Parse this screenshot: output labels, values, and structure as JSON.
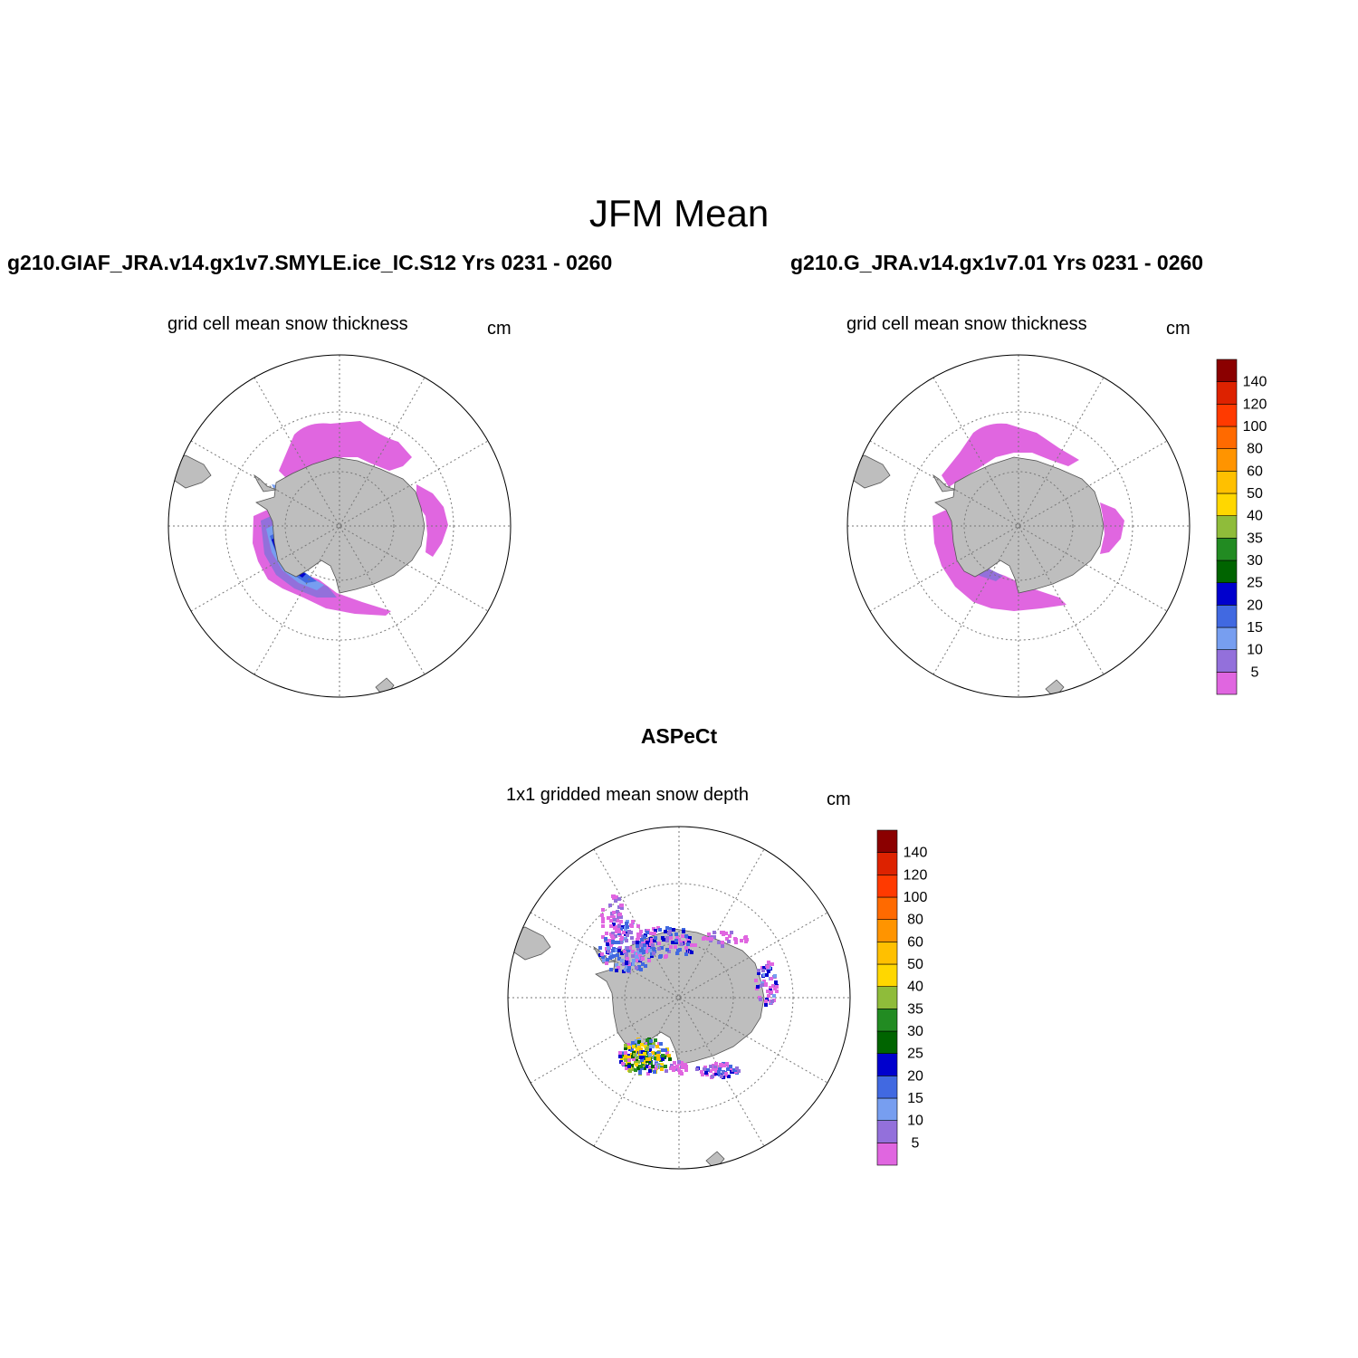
{
  "figure": {
    "title": "JFM Mean"
  },
  "panels": [
    {
      "id": "left",
      "title": "g210.GIAF_JRA.v14.gx1v7.SMYLE.ice_IC.S12  Yrs 0231 - 0260",
      "subtitle": "grid cell mean snow thickness",
      "units": "cm"
    },
    {
      "id": "right",
      "title": "g210.G_JRA.v14.gx1v7.01  Yrs 0231 - 0260",
      "subtitle": "grid cell mean snow thickness",
      "units": "cm"
    },
    {
      "id": "bottom",
      "title": "ASPeCt",
      "subtitle": "1x1 gridded mean snow depth",
      "units": "cm"
    }
  ],
  "colorbar": {
    "levels": [
      "5",
      "10",
      "15",
      "20",
      "25",
      "30",
      "35",
      "40",
      "50",
      "60",
      "80",
      "100",
      "120",
      "140"
    ],
    "colors": [
      "#e066e0",
      "#9370db",
      "#779ef0",
      "#4169e1",
      "#0000cd",
      "#006400",
      "#228b22",
      "#8fbc3a",
      "#ffd700",
      "#ffc000",
      "#ff9400",
      "#ff6a00",
      "#ff3a00",
      "#dd2200",
      "#8b0000"
    ]
  },
  "map": {
    "projection": "South polar stereographic",
    "land_color": "#bebebe"
  }
}
